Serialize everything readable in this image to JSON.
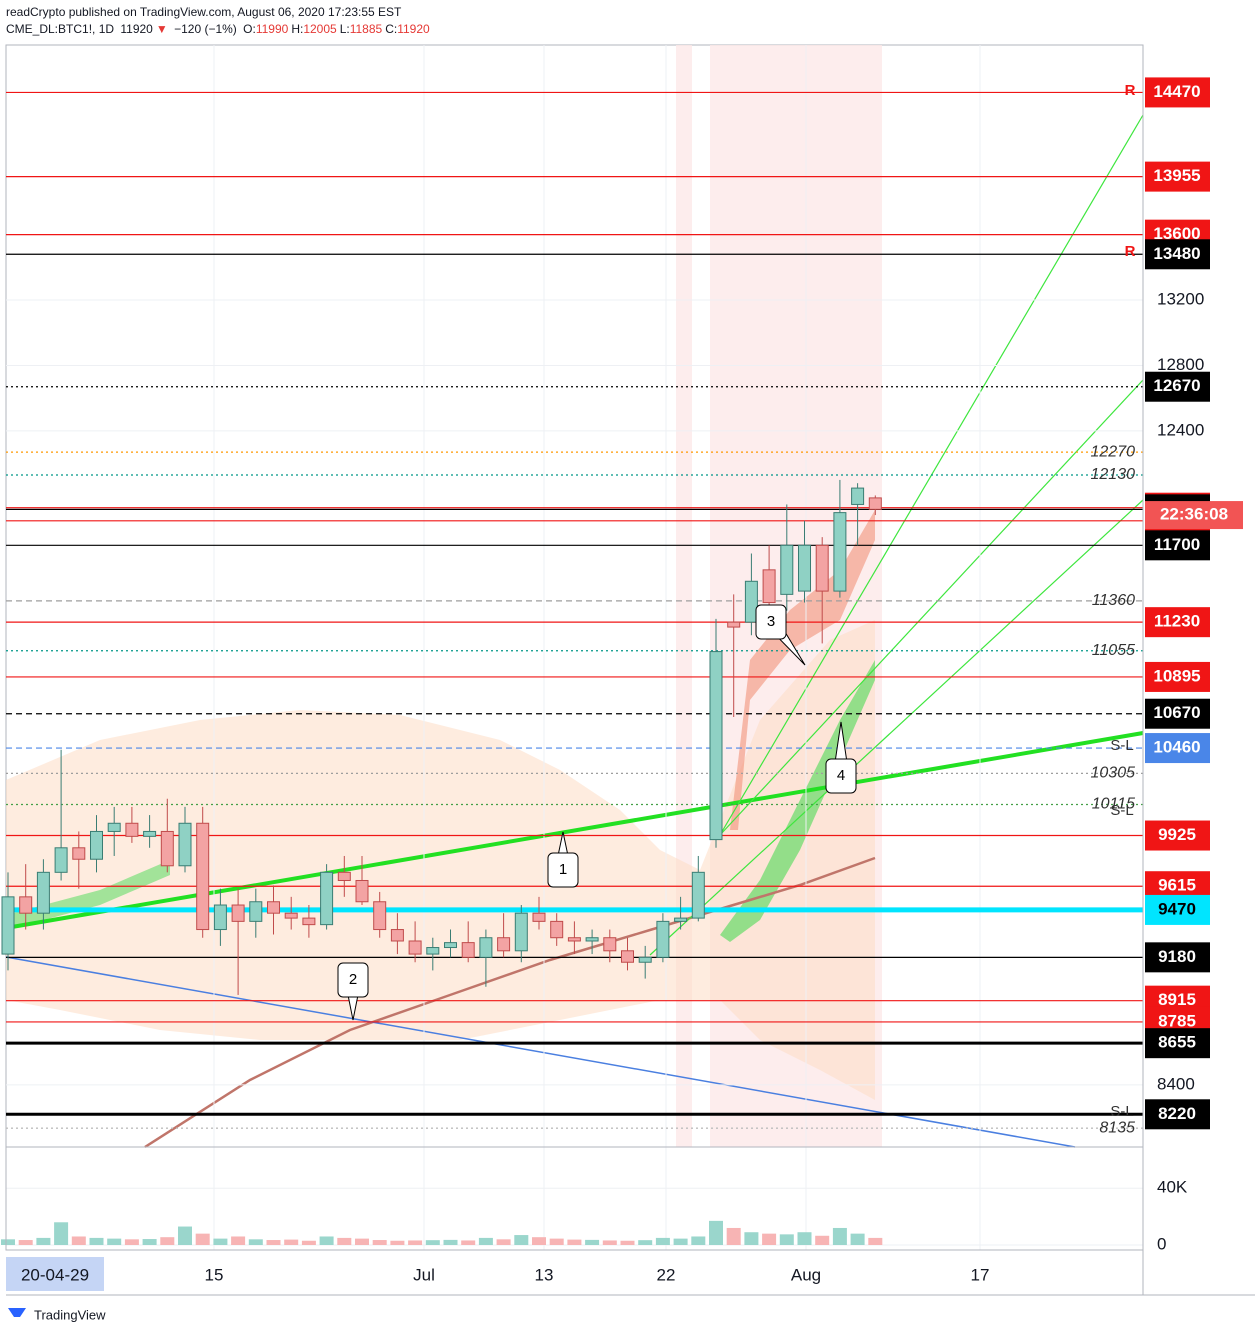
{
  "header": {
    "line1": "readCrypto published on TradingView.com, August 06, 2020 17:23:55 EST",
    "symbol": "CME_DL:BTC1!, 1D",
    "last": 11920,
    "arrow": "▼",
    "change": "−120 (−1%)",
    "ohlc": [
      {
        "label": "O:",
        "value": 11990
      },
      {
        "label": "H:",
        "value": 12005
      },
      {
        "label": "L:",
        "value": 11885
      },
      {
        "label": "C:",
        "value": 11920
      }
    ]
  },
  "chart_data": {
    "type": "candlestick",
    "ylim": [
      8020,
      14760
    ],
    "yticks": [
      13200,
      12800,
      12400,
      8400
    ],
    "candles": [
      {
        "o": 9200,
        "h": 9700,
        "l": 9100,
        "c": 9550
      },
      {
        "o": 9550,
        "h": 9750,
        "l": 9350,
        "c": 9450
      },
      {
        "o": 9450,
        "h": 9780,
        "l": 9350,
        "c": 9700
      },
      {
        "o": 9700,
        "h": 10450,
        "l": 9650,
        "c": 9850
      },
      {
        "o": 9850,
        "h": 9950,
        "l": 9600,
        "c": 9780
      },
      {
        "o": 9780,
        "h": 10050,
        "l": 9700,
        "c": 9950
      },
      {
        "o": 9950,
        "h": 10100,
        "l": 9800,
        "c": 10000
      },
      {
        "o": 10000,
        "h": 10100,
        "l": 9880,
        "c": 9920
      },
      {
        "o": 9920,
        "h": 10050,
        "l": 9850,
        "c": 9950
      },
      {
        "o": 9950,
        "h": 10150,
        "l": 9700,
        "c": 9740
      },
      {
        "o": 9740,
        "h": 10100,
        "l": 9700,
        "c": 10000
      },
      {
        "o": 10000,
        "h": 10100,
        "l": 9300,
        "c": 9350
      },
      {
        "o": 9350,
        "h": 9600,
        "l": 9250,
        "c": 9500
      },
      {
        "o": 9500,
        "h": 9600,
        "l": 8950,
        "c": 9400
      },
      {
        "o": 9400,
        "h": 9600,
        "l": 9300,
        "c": 9520
      },
      {
        "o": 9520,
        "h": 9620,
        "l": 9320,
        "c": 9450
      },
      {
        "o": 9450,
        "h": 9550,
        "l": 9350,
        "c": 9420
      },
      {
        "o": 9420,
        "h": 9500,
        "l": 9300,
        "c": 9380
      },
      {
        "o": 9380,
        "h": 9750,
        "l": 9350,
        "c": 9700
      },
      {
        "o": 9700,
        "h": 9800,
        "l": 9550,
        "c": 9650
      },
      {
        "o": 9650,
        "h": 9800,
        "l": 9500,
        "c": 9520
      },
      {
        "o": 9520,
        "h": 9580,
        "l": 9300,
        "c": 9350
      },
      {
        "o": 9350,
        "h": 9450,
        "l": 9200,
        "c": 9280
      },
      {
        "o": 9280,
        "h": 9400,
        "l": 9150,
        "c": 9200
      },
      {
        "o": 9200,
        "h": 9300,
        "l": 9100,
        "c": 9240
      },
      {
        "o": 9240,
        "h": 9350,
        "l": 9180,
        "c": 9270
      },
      {
        "o": 9270,
        "h": 9400,
        "l": 9150,
        "c": 9180
      },
      {
        "o": 9180,
        "h": 9350,
        "l": 9000,
        "c": 9300
      },
      {
        "o": 9300,
        "h": 9450,
        "l": 9180,
        "c": 9220
      },
      {
        "o": 9220,
        "h": 9500,
        "l": 9150,
        "c": 9450
      },
      {
        "o": 9450,
        "h": 9550,
        "l": 9350,
        "c": 9400
      },
      {
        "o": 9400,
        "h": 9450,
        "l": 9250,
        "c": 9300
      },
      {
        "o": 9300,
        "h": 9400,
        "l": 9200,
        "c": 9280
      },
      {
        "o": 9280,
        "h": 9350,
        "l": 9200,
        "c": 9300
      },
      {
        "o": 9300,
        "h": 9350,
        "l": 9150,
        "c": 9220
      },
      {
        "o": 9220,
        "h": 9300,
        "l": 9100,
        "c": 9150
      },
      {
        "o": 9150,
        "h": 9250,
        "l": 9050,
        "c": 9180
      },
      {
        "o": 9180,
        "h": 9450,
        "l": 9150,
        "c": 9400
      },
      {
        "o": 9400,
        "h": 9550,
        "l": 9350,
        "c": 9420
      },
      {
        "o": 9420,
        "h": 9800,
        "l": 9400,
        "c": 9700
      },
      {
        "o": 9900,
        "h": 11250,
        "l": 9850,
        "c": 11050
      },
      {
        "o": 11230,
        "h": 11400,
        "l": 10650,
        "c": 11200
      },
      {
        "o": 11230,
        "h": 11650,
        "l": 11150,
        "c": 11480
      },
      {
        "o": 11550,
        "h": 11700,
        "l": 11250,
        "c": 11350
      },
      {
        "o": 11400,
        "h": 11950,
        "l": 11300,
        "c": 11700
      },
      {
        "o": 11420,
        "h": 11850,
        "l": 11350,
        "c": 11700
      },
      {
        "o": 11700,
        "h": 11750,
        "l": 11100,
        "c": 11420
      },
      {
        "o": 11420,
        "h": 12100,
        "l": 11380,
        "c": 11900
      },
      {
        "o": 11950,
        "h": 12080,
        "l": 11700,
        "c": 12050
      },
      {
        "o": 11990,
        "h": 12005,
        "l": 11885,
        "c": 11920
      }
    ],
    "levels": [
      {
        "value": 14470,
        "color": "#f01515",
        "line": "solid"
      },
      {
        "value": 13955,
        "color": "#f01515",
        "line": "solid"
      },
      {
        "value": 13600,
        "color": "#f01515",
        "line": "solid"
      },
      {
        "value": 13480,
        "color": "#000000",
        "line": "solid"
      },
      {
        "value": 12670,
        "color": "#000000",
        "line": "dotted"
      },
      {
        "value": 11930,
        "color": "#f01515",
        "line": "solid"
      },
      {
        "value": 11920,
        "color": "#000000",
        "line": "solid"
      },
      {
        "value": 11850,
        "color": "#f01515",
        "line": "solid"
      },
      {
        "value": 11700,
        "color": "#000000",
        "line": "solid"
      },
      {
        "value": 11230,
        "color": "#f01515",
        "line": "solid"
      },
      {
        "value": 10895,
        "color": "#f01515",
        "line": "solid"
      },
      {
        "value": 10670,
        "color": "#000000",
        "line": "dashed"
      },
      {
        "value": 10460,
        "color": "#4a86e8",
        "line": "dashed"
      },
      {
        "value": 9925,
        "color": "#f01515",
        "line": "solid"
      },
      {
        "value": 9615,
        "color": "#f01515",
        "line": "solid"
      },
      {
        "value": 9470,
        "color": "#00e5ff",
        "line": "thick"
      },
      {
        "value": 9180,
        "color": "#000000",
        "line": "solid"
      },
      {
        "value": 8915,
        "color": "#f01515",
        "line": "solid"
      },
      {
        "value": 8785,
        "color": "#f01515",
        "line": "solid"
      },
      {
        "value": 8655,
        "color": "#000000",
        "line": "thick"
      },
      {
        "value": 8220,
        "color": "#000000",
        "line": "thick"
      }
    ],
    "countdown": "22:36:08",
    "notes": [
      {
        "value": 12270,
        "color": "#ff9800",
        "line": "dotted"
      },
      {
        "value": 12130,
        "color": "#009688",
        "line": "dotted"
      },
      {
        "value": 11360,
        "color": "#9e9e9e",
        "line": "dashed"
      },
      {
        "value": 11055,
        "color": "#009688",
        "line": "dotted"
      },
      {
        "value": 10305,
        "color": "#9e9e9e",
        "line": "dotted"
      },
      {
        "value": 10115,
        "color": "#43a047",
        "line": "dotted"
      },
      {
        "value": 8135,
        "color": "#bdbdbd",
        "line": "dotted"
      }
    ],
    "tags": [
      "R",
      "R",
      "S-L",
      "S-L",
      "S-L"
    ],
    "callouts": [
      "1",
      "2",
      "3",
      "4"
    ],
    "xlabels": [
      "20-04-29",
      "15",
      "Jul",
      "13",
      "22",
      "Aug",
      "17"
    ],
    "volume": {
      "ylim": [
        0,
        65500
      ],
      "yticks": [
        {
          "value": 40000,
          "label": "40K"
        },
        0
      ],
      "values": [
        4000,
        3500,
        5000,
        16000,
        6000,
        5000,
        4500,
        4000,
        4200,
        5500,
        13000,
        8000,
        4500,
        6000,
        4000,
        3500,
        3800,
        3000,
        6000,
        5000,
        4500,
        3500,
        3000,
        3200,
        3400,
        3600,
        3200,
        5000,
        4000,
        7000,
        5500,
        4500,
        3800,
        3600,
        3200,
        3000,
        3400,
        5000,
        4500,
        6000,
        17000,
        12000,
        9000,
        8000,
        7500,
        9000,
        6500,
        12000,
        8000,
        5000
      ]
    }
  },
  "footer": "TradingView"
}
